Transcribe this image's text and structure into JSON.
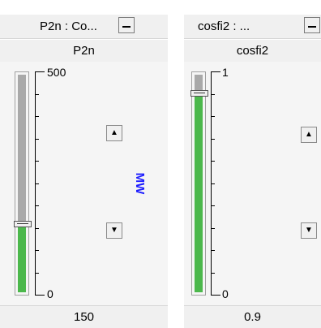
{
  "panels": [
    {
      "title": "P2n : Co...",
      "name": "P2n",
      "scale_max_label": "500",
      "scale_min_label": "0",
      "unit": "MW",
      "value": "150",
      "fill_fraction": 0.3
    },
    {
      "title": "cosfi2 : ...",
      "name": "cosfi2",
      "scale_max_label": "1",
      "scale_min_label": "0",
      "unit": "",
      "value": "0.9",
      "fill_fraction": 0.9
    }
  ],
  "icons": {
    "minimize": "minimize-icon",
    "up": "arrow-up-icon",
    "down": "arrow-down-icon"
  },
  "colors": {
    "fill": "#4cb84c",
    "remaining": "#a9a9a9",
    "unit": "#1c1cff",
    "chrome": "#f0f0f0"
  }
}
